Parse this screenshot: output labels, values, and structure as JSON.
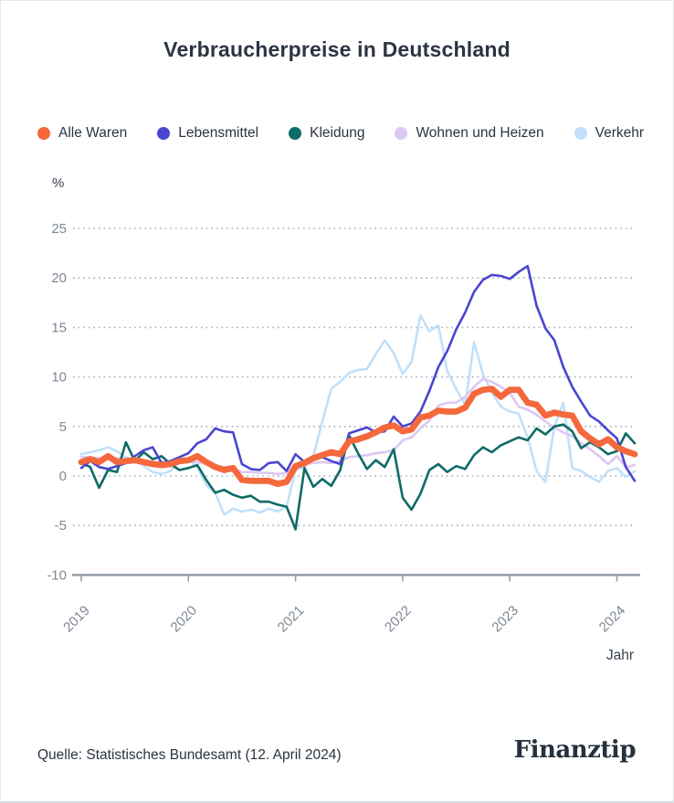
{
  "page": {
    "title": "Verbraucherpreise in Deutschland"
  },
  "axis": {
    "unit_label": "%",
    "x_label": "Jahr",
    "y_ticks": [
      25,
      20,
      15,
      10,
      5,
      0,
      -5,
      -10
    ]
  },
  "footer": {
    "source": "Quelle: Statistisches Bundesamt (12. April 2024)",
    "brand": "Finanztip"
  },
  "colors": {
    "text_dark": "#2b3442",
    "axis_line": "#959da7",
    "grid_dots": "#a9aeb7",
    "tick_label": "#7d8794"
  },
  "chart_data": {
    "type": "line",
    "title": "Verbraucherpreise in Deutschland",
    "xlabel": "Jahr",
    "ylabel": "%",
    "ylim": [
      -10,
      25
    ],
    "x_start": "2019-01",
    "x_end": "2024-03",
    "x_interval": "monthly",
    "x_tick_labels": [
      "2019",
      "2020",
      "2021",
      "2022",
      "2023",
      "2024"
    ],
    "grid": "dotted-horizontal",
    "legend_position": "top-left",
    "draw_order": [
      "Verkehr",
      "Wohnen und Heizen",
      "Kleidung",
      "Lebensmittel",
      "Alle Waren"
    ],
    "series": [
      {
        "name": "Alle Waren",
        "color": "#F4683C",
        "width": 6.8,
        "values": [
          1.4,
          1.7,
          1.4,
          2.0,
          1.4,
          1.5,
          1.6,
          1.4,
          1.2,
          1.1,
          1.2,
          1.5,
          1.6,
          2.0,
          1.4,
          0.9,
          0.6,
          0.8,
          -0.4,
          -0.5,
          -0.5,
          -0.5,
          -0.8,
          -0.6,
          1.0,
          1.3,
          1.8,
          2.1,
          2.4,
          2.2,
          3.5,
          3.7,
          4.0,
          4.4,
          4.9,
          5.1,
          4.5,
          4.7,
          5.9,
          6.1,
          6.6,
          6.5,
          6.5,
          6.9,
          8.3,
          8.7,
          8.8,
          8.0,
          8.7,
          8.7,
          7.4,
          7.2,
          6.1,
          6.4,
          6.2,
          6.1,
          4.5,
          3.8,
          3.2,
          3.7,
          2.9,
          2.5,
          2.2
        ]
      },
      {
        "name": "Lebensmittel",
        "color": "#4A45D2",
        "width": 2.6,
        "values": [
          0.8,
          1.5,
          0.9,
          0.7,
          1.0,
          1.3,
          2.0,
          2.6,
          2.9,
          1.3,
          1.5,
          1.9,
          2.3,
          3.3,
          3.7,
          4.8,
          4.5,
          4.4,
          1.2,
          0.7,
          0.6,
          1.3,
          1.4,
          0.5,
          2.2,
          1.4,
          1.6,
          1.9,
          1.5,
          1.2,
          4.3,
          4.6,
          4.9,
          4.4,
          4.5,
          6.0,
          5.0,
          5.3,
          6.5,
          8.6,
          11.0,
          12.6,
          14.8,
          16.5,
          18.6,
          19.8,
          20.3,
          20.2,
          19.9,
          20.6,
          21.2,
          17.2,
          14.9,
          13.7,
          11.0,
          9.0,
          7.5,
          6.1,
          5.5,
          4.6,
          3.8,
          0.9,
          -0.5
        ]
      },
      {
        "name": "Kleidung",
        "color": "#0E6B66",
        "width": 2.6,
        "values": [
          1.3,
          0.9,
          -1.2,
          0.6,
          0.4,
          3.4,
          1.5,
          2.4,
          1.7,
          2.0,
          1.2,
          0.6,
          0.8,
          1.1,
          -0.4,
          -1.7,
          -1.4,
          -1.9,
          -2.2,
          -2.0,
          -2.6,
          -2.6,
          -2.9,
          -3.1,
          -5.4,
          0.8,
          -1.1,
          -0.3,
          -1.0,
          0.6,
          4.1,
          2.3,
          0.7,
          1.6,
          0.9,
          2.7,
          -2.2,
          -3.4,
          -1.8,
          0.6,
          1.2,
          0.4,
          1.0,
          0.7,
          2.1,
          2.9,
          2.4,
          3.1,
          3.5,
          3.9,
          3.6,
          4.8,
          4.2,
          5.0,
          5.2,
          4.5,
          2.8,
          3.4,
          2.9,
          2.2,
          2.5,
          4.3,
          3.3
        ]
      },
      {
        "name": "Wohnen und Heizen",
        "color": "#DDC7F3",
        "width": 2.6,
        "values": [
          1.9,
          1.9,
          1.8,
          1.9,
          1.8,
          1.7,
          1.6,
          1.5,
          1.4,
          1.4,
          1.4,
          1.5,
          1.5,
          1.4,
          1.2,
          1.0,
          0.9,
          0.8,
          0.4,
          0.4,
          0.3,
          0.3,
          0.2,
          0.3,
          1.0,
          1.2,
          1.3,
          1.4,
          1.3,
          1.5,
          1.9,
          2.0,
          2.1,
          2.3,
          2.4,
          2.6,
          3.6,
          3.9,
          4.8,
          5.6,
          7.1,
          7.4,
          7.4,
          8.0,
          9.0,
          9.8,
          9.5,
          9.0,
          8.4,
          7.0,
          6.7,
          6.2,
          5.5,
          4.9,
          4.4,
          4.0,
          3.3,
          2.7,
          2.0,
          1.2,
          2.0,
          0.9,
          1.1
        ]
      },
      {
        "name": "Verkehr",
        "color": "#C1E0FA",
        "width": 2.6,
        "values": [
          2.2,
          2.4,
          2.6,
          2.9,
          2.5,
          1.9,
          1.6,
          1.0,
          0.4,
          0.2,
          0.5,
          1.4,
          1.6,
          0.9,
          -0.9,
          -1.7,
          -3.9,
          -3.3,
          -3.6,
          -3.4,
          -3.7,
          -3.3,
          -3.6,
          -3.1,
          0.6,
          0.9,
          2.0,
          5.5,
          8.8,
          9.5,
          10.4,
          10.7,
          10.8,
          12.3,
          13.7,
          12.4,
          10.3,
          11.5,
          16.2,
          14.6,
          15.2,
          10.6,
          8.8,
          7.2,
          13.5,
          10.3,
          8.4,
          7.0,
          6.5,
          6.3,
          3.9,
          0.5,
          -0.6,
          5.0,
          7.4,
          0.8,
          0.5,
          -0.1,
          -0.6,
          0.5,
          0.8,
          -0.1,
          0.5
        ]
      }
    ]
  }
}
